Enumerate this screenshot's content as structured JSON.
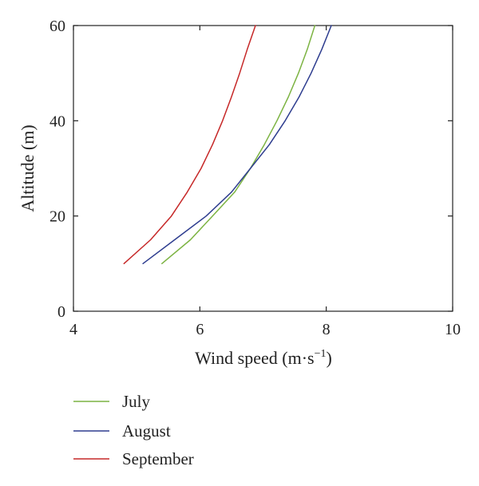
{
  "chart_data": {
    "type": "line",
    "xlabel_main": "Wind speed (m·s",
    "xlabel_sup": "−1",
    "xlabel_close": ")",
    "ylabel": "Altitude (m)",
    "xlim": [
      4,
      10
    ],
    "ylim": [
      0,
      60
    ],
    "x_ticks": [
      4,
      6,
      8,
      10
    ],
    "y_ticks": [
      0,
      20,
      40,
      60
    ],
    "grid": false,
    "legend_position": "bottom-left, below plot",
    "series": [
      {
        "name": "July",
        "color": "#7cb342",
        "points": [
          [
            5.4,
            10
          ],
          [
            5.85,
            15
          ],
          [
            6.2,
            20
          ],
          [
            6.55,
            25
          ],
          [
            6.8,
            30
          ],
          [
            7.02,
            35
          ],
          [
            7.22,
            40
          ],
          [
            7.4,
            45
          ],
          [
            7.56,
            50
          ],
          [
            7.7,
            55
          ],
          [
            7.82,
            60
          ]
        ]
      },
      {
        "name": "August",
        "color": "#2e3d8f",
        "points": [
          [
            5.1,
            10
          ],
          [
            5.6,
            15
          ],
          [
            6.1,
            20
          ],
          [
            6.5,
            25
          ],
          [
            6.8,
            30
          ],
          [
            7.1,
            35
          ],
          [
            7.35,
            40
          ],
          [
            7.57,
            45
          ],
          [
            7.76,
            50
          ],
          [
            7.93,
            55
          ],
          [
            8.08,
            60
          ]
        ]
      },
      {
        "name": "September",
        "color": "#c62828",
        "points": [
          [
            4.8,
            10
          ],
          [
            5.22,
            15
          ],
          [
            5.55,
            20
          ],
          [
            5.8,
            25
          ],
          [
            6.02,
            30
          ],
          [
            6.2,
            35
          ],
          [
            6.36,
            40
          ],
          [
            6.5,
            45
          ],
          [
            6.63,
            50
          ],
          [
            6.75,
            55
          ],
          [
            6.88,
            60
          ]
        ]
      }
    ]
  }
}
